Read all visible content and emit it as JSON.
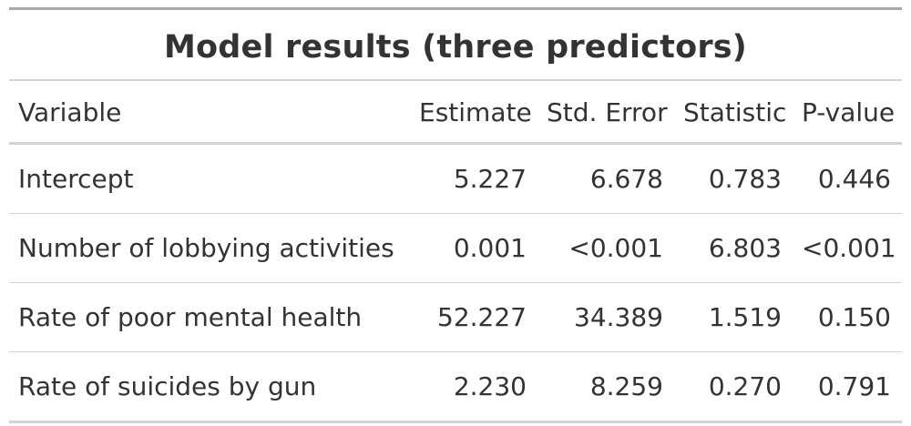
{
  "table": {
    "title": "Model results (three predictors)",
    "headers": [
      "Variable",
      "Estimate",
      "Std. Error",
      "Statistic",
      "P-value"
    ],
    "rows": [
      [
        "Intercept",
        "5.227",
        "6.678",
        "0.783",
        "0.446"
      ],
      [
        "Number of lobbying activities",
        "0.001",
        "<0.001",
        "6.803",
        "<0.001"
      ],
      [
        "Rate of poor mental health",
        "52.227",
        "34.389",
        "1.519",
        "0.150"
      ],
      [
        "Rate of suicides by gun",
        "2.230",
        "8.259",
        "0.270",
        "0.791"
      ]
    ]
  }
}
